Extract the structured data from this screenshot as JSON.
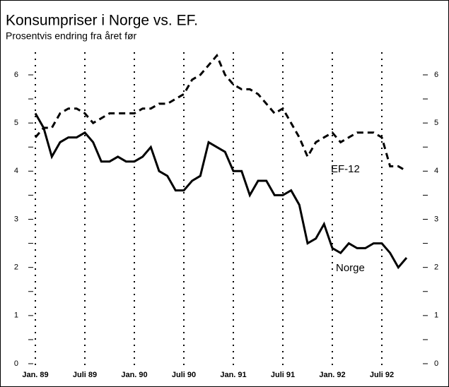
{
  "chart_data": {
    "type": "line",
    "title": "Konsumpriser i Norge vs. EF.",
    "subtitle": "Prosentvis endring fra året før",
    "categories": [
      "Jan. 89",
      null,
      null,
      null,
      null,
      null,
      "Juli 89",
      null,
      null,
      null,
      null,
      null,
      "Jan. 90",
      null,
      null,
      null,
      null,
      null,
      "Juli 90",
      null,
      null,
      null,
      null,
      null,
      "Jan. 91",
      null,
      null,
      null,
      null,
      null,
      "Juli 91",
      null,
      null,
      null,
      null,
      null,
      "Jan. 92",
      null,
      null,
      null,
      null,
      null,
      "Juli 92",
      null,
      null,
      null
    ],
    "series": [
      {
        "name": "Norge",
        "color": "#000000",
        "dash": false,
        "values": [
          5.2,
          4.9,
          4.3,
          4.6,
          4.7,
          4.7,
          4.8,
          4.6,
          4.2,
          4.2,
          4.3,
          4.2,
          4.2,
          4.3,
          4.5,
          4.0,
          3.9,
          3.6,
          3.6,
          3.8,
          3.9,
          4.6,
          4.5,
          4.4,
          4.0,
          4.0,
          3.5,
          3.8,
          3.8,
          3.5,
          3.5,
          3.6,
          3.3,
          2.5,
          2.6,
          2.9,
          2.4,
          2.3,
          2.5,
          2.4,
          2.4,
          2.5,
          2.5,
          2.3,
          2.0,
          2.2
        ]
      },
      {
        "name": "EF-12",
        "color": "#000000",
        "dash": true,
        "values": [
          4.7,
          4.9,
          4.9,
          5.2,
          5.3,
          5.3,
          5.2,
          5.0,
          5.1,
          5.2,
          5.2,
          5.2,
          5.2,
          5.3,
          5.3,
          5.4,
          5.4,
          5.5,
          5.6,
          5.9,
          6.0,
          6.2,
          6.4,
          6.0,
          5.8,
          5.7,
          5.7,
          5.6,
          5.4,
          5.2,
          5.3,
          5.0,
          4.7,
          4.3,
          4.6,
          4.7,
          4.8,
          4.6,
          4.7,
          4.8,
          4.8,
          4.8,
          4.7,
          4.1,
          4.1,
          4.0
        ]
      }
    ],
    "ylim": [
      0,
      6
    ],
    "yticks": [
      0,
      1,
      2,
      3,
      4,
      5,
      6
    ],
    "right_axis_labels": true
  }
}
